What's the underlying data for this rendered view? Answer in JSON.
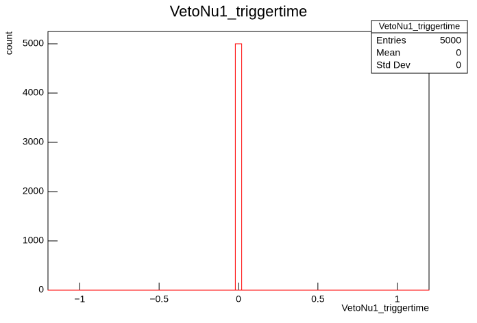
{
  "chart_data": {
    "type": "histogram",
    "title": "VetoNu1_triggertime",
    "x_label": "VetoNu1_triggertime",
    "y_label": "count",
    "bins": [
      -1.2,
      -0.02,
      0.02,
      1.2
    ],
    "values": [
      0,
      5000,
      0
    ],
    "color": "#ff0000",
    "xlim": [
      -1.2,
      1.2
    ],
    "ylim": [
      0,
      5250
    ],
    "xticks": [
      {
        "value": -1,
        "label": "−1"
      },
      {
        "value": -0.5,
        "label": "−0.5"
      },
      0,
      0.5,
      1
    ],
    "yticks": [
      0,
      1000,
      2000,
      3000,
      4000,
      5000
    ],
    "stats": {
      "title": "VetoNu1_triggertime",
      "rows": [
        {
          "label": "Entries",
          "value": 5000
        },
        {
          "label": "Mean",
          "value": 0
        },
        {
          "label": "Std Dev",
          "value": 0
        }
      ]
    }
  }
}
